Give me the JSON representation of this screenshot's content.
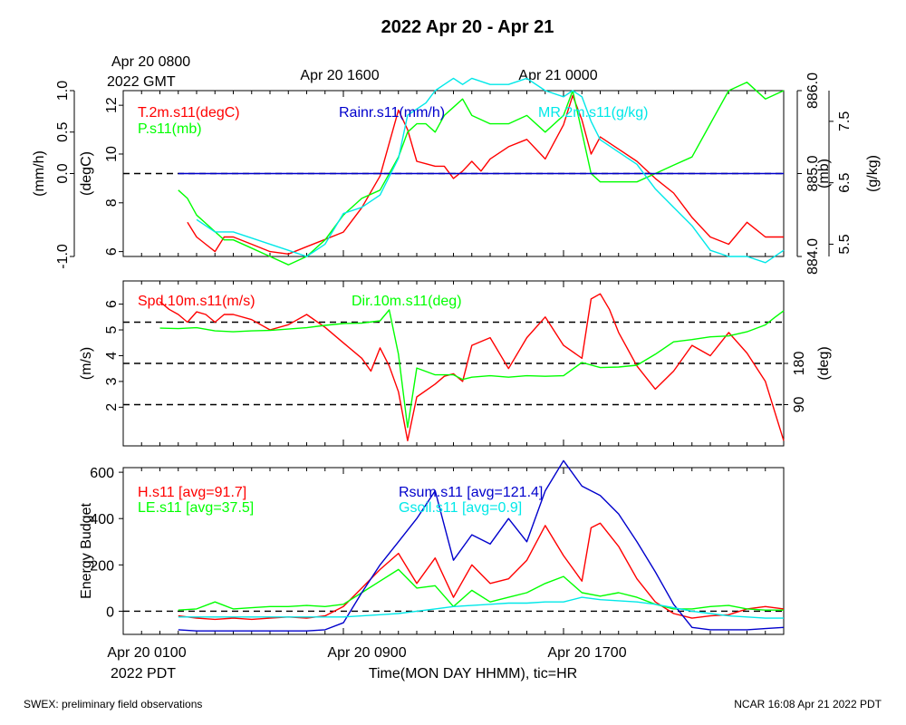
{
  "figure": {
    "title": "2022 Apr 20 - Apr 21",
    "gmt_label_1": "Apr 20 0800",
    "gmt_label_2": "2022 GMT",
    "gmt_top_ticks": [
      "Apr 20 1600",
      "Apr 21 0000"
    ],
    "pdt_bottom_ticks": [
      "Apr 20 0100",
      "Apr 20 0900",
      "Apr 20 1700"
    ],
    "pdt_label": "2022 PDT",
    "x_axis_label": "Time(MON DAY HHMM), tic=HR",
    "footer_left": "SWEX: preliminary field observations",
    "footer_right": "NCAR 16:08 Apr 21 2022 PDT",
    "colors": {
      "red": "#ff0000",
      "green": "#00ff00",
      "blue": "#0000cc",
      "cyan": "#00e8e8",
      "axis": "#000000"
    }
  },
  "chart_data": [
    {
      "type": "line",
      "panel": "top",
      "x_range_hours": [
        0,
        36
      ],
      "axes": [
        {
          "label": "(mm/h)",
          "ticks": [
            "-1.0",
            "0.0",
            "0.5",
            "1.0"
          ],
          "range": [
            -1.0,
            1.0
          ]
        },
        {
          "label": "(degC)",
          "ticks": [
            "6",
            "8",
            "10",
            "12"
          ],
          "range": [
            5.8,
            12.6
          ]
        },
        {
          "label": "(mb)",
          "ticks": [
            "884.0",
            "885.0",
            "886.0"
          ],
          "range": [
            884.0,
            886.0
          ]
        },
        {
          "label": "(g/kg)",
          "ticks": [
            "5.5",
            "6.5",
            "7.5"
          ],
          "range": [
            5.3,
            8.0
          ]
        }
      ],
      "series": [
        {
          "name": "T.2m.s11(degC)",
          "color": "#ff0000",
          "axis": 1,
          "x": [
            3.5,
            4,
            4.5,
            5,
            5.5,
            6,
            7,
            8,
            9,
            10,
            11,
            12,
            13,
            14,
            15,
            15.5,
            16,
            16.5,
            17,
            17.5,
            18,
            18.5,
            19,
            19.5,
            20,
            21,
            22,
            23,
            24,
            24.5,
            25,
            25.5,
            26,
            27,
            28,
            29,
            30,
            31,
            32,
            33,
            34,
            35,
            36
          ],
          "y": [
            7.2,
            6.6,
            6.3,
            6.0,
            6.6,
            6.6,
            6.3,
            6.0,
            5.9,
            6.2,
            6.5,
            6.8,
            7.8,
            9.1,
            11.8,
            11.0,
            9.7,
            9.6,
            9.5,
            9.5,
            9.0,
            9.3,
            9.7,
            9.3,
            9.8,
            10.3,
            10.6,
            9.8,
            11.2,
            12.4,
            11.4,
            10.0,
            10.7,
            10.2,
            9.7,
            9.0,
            8.4,
            7.4,
            6.6,
            6.3,
            7.2,
            6.6,
            6.6
          ]
        },
        {
          "name": "P.s11(mb)",
          "color": "#00ff00",
          "axis": 2,
          "x": [
            3,
            3.5,
            4,
            4.5,
            5,
            5.5,
            6,
            7,
            8,
            9,
            10,
            11,
            12,
            13,
            14,
            15,
            15.5,
            16,
            16.5,
            17,
            17.5,
            18,
            18.5,
            19,
            20,
            21,
            22,
            23,
            24,
            24.5,
            25,
            25.5,
            26,
            27,
            28,
            29,
            30,
            31,
            32,
            33,
            34,
            35,
            36
          ],
          "y": [
            884.8,
            884.7,
            884.5,
            884.4,
            884.3,
            884.2,
            884.2,
            884.1,
            884.0,
            883.9,
            884.0,
            884.2,
            884.5,
            884.7,
            884.8,
            885.2,
            885.5,
            885.6,
            885.6,
            885.5,
            885.7,
            885.8,
            885.9,
            885.7,
            885.6,
            885.6,
            885.7,
            885.5,
            885.7,
            886.0,
            885.5,
            885.0,
            884.9,
            884.9,
            884.9,
            885.0,
            885.1,
            885.2,
            885.6,
            886.0,
            886.1,
            885.9,
            886.0
          ]
        },
        {
          "name": "Rainr.s11(mm/h)",
          "color": "#0000cc",
          "axis": 0,
          "x": [
            3,
            36
          ],
          "y": [
            0.0,
            0.0
          ]
        },
        {
          "name": "MR.2m.s11(g/kg)",
          "color": "#00e8e8",
          "axis": 3,
          "x": [
            4,
            5,
            6,
            7,
            8,
            9,
            10,
            11,
            12,
            13,
            14,
            15,
            15.5,
            16,
            16.5,
            17,
            17.5,
            18,
            18.5,
            19,
            20,
            21,
            22,
            23,
            24,
            24.5,
            25,
            25.5,
            26,
            27,
            28,
            29,
            30,
            31,
            32,
            33,
            34,
            35,
            36
          ],
          "y": [
            5.9,
            5.7,
            5.7,
            5.6,
            5.5,
            5.4,
            5.3,
            5.5,
            6.0,
            6.1,
            6.3,
            6.9,
            7.6,
            7.7,
            7.8,
            8.0,
            8.1,
            8.2,
            8.1,
            8.2,
            8.1,
            8.1,
            8.2,
            8.0,
            7.9,
            8.0,
            7.9,
            7.5,
            7.2,
            7.0,
            6.8,
            6.4,
            6.1,
            5.8,
            5.4,
            5.3,
            5.3,
            5.2,
            5.4
          ]
        }
      ]
    },
    {
      "type": "line",
      "panel": "middle",
      "x_range_hours": [
        0,
        36
      ],
      "axes": [
        {
          "label": "(m/s)",
          "ticks": [
            "2",
            "3",
            "4",
            "5",
            "6"
          ],
          "range": [
            0.5,
            6.9
          ]
        },
        {
          "label": "(deg)",
          "ticks": [
            "90",
            "180"
          ],
          "range": [
            0,
            360
          ]
        }
      ],
      "series": [
        {
          "name": "Spd.10m.s11(m/s)",
          "color": "#ff0000",
          "axis": 0,
          "x": [
            2,
            2.5,
            3,
            3.5,
            4,
            4.5,
            5,
            5.5,
            6,
            7,
            8,
            9,
            10,
            11,
            12,
            13,
            13.5,
            14,
            14.5,
            15,
            15.5,
            16,
            17,
            17.5,
            18,
            18.5,
            19,
            20,
            21,
            22,
            23,
            24,
            25,
            25.5,
            26,
            26.5,
            27,
            28,
            29,
            30,
            31,
            32,
            33,
            34,
            35,
            36
          ],
          "y": [
            6.1,
            5.8,
            5.6,
            5.3,
            5.7,
            5.6,
            5.3,
            5.6,
            5.6,
            5.4,
            5.0,
            5.2,
            5.6,
            5.1,
            4.5,
            3.9,
            3.4,
            4.3,
            3.6,
            2.6,
            0.7,
            2.4,
            2.9,
            3.2,
            3.3,
            3.0,
            4.4,
            4.7,
            3.5,
            4.7,
            5.5,
            4.4,
            3.9,
            6.2,
            6.4,
            5.8,
            4.9,
            3.6,
            2.7,
            3.4,
            4.4,
            4.0,
            4.9,
            4.1,
            3.0,
            0.7
          ]
        },
        {
          "name": "Dir.10m.s11(deg)",
          "color": "#00ff00",
          "axis": 1,
          "x": [
            2,
            3,
            4,
            5,
            6,
            7,
            8,
            9,
            10,
            11,
            12,
            13,
            14,
            14.5,
            15,
            15.5,
            16,
            17,
            18,
            18.5,
            19,
            20,
            21,
            22,
            23,
            24,
            25,
            26,
            27,
            28,
            29,
            30,
            31,
            32,
            33,
            34,
            35,
            35.5,
            36
          ],
          "y": [
            257,
            256,
            258,
            251,
            249,
            251,
            252,
            255,
            258,
            263,
            267,
            268,
            273,
            297,
            200,
            40,
            170,
            155,
            155,
            145,
            150,
            153,
            150,
            153,
            152,
            153,
            182,
            171,
            172,
            176,
            200,
            227,
            232,
            238,
            240,
            249,
            264,
            280,
            295
          ]
        }
      ]
    },
    {
      "type": "line",
      "panel": "bottom",
      "ylabel": "Energy Budget",
      "x_range_hours": [
        0,
        36
      ],
      "ylim": [
        -100,
        620
      ],
      "series": [
        {
          "name": "H.s11 [avg=91.7]",
          "color": "#ff0000",
          "x": [
            3,
            4,
            5,
            6,
            7,
            8,
            9,
            10,
            11,
            12,
            13,
            14,
            15,
            16,
            17,
            18,
            19,
            20,
            21,
            22,
            23,
            24,
            25,
            25.5,
            26,
            27,
            28,
            29,
            30,
            31,
            32,
            33,
            34,
            35,
            36
          ],
          "y": [
            -20,
            -30,
            -35,
            -30,
            -35,
            -30,
            -25,
            -30,
            -20,
            20,
            100,
            180,
            250,
            120,
            230,
            60,
            200,
            120,
            140,
            220,
            370,
            240,
            130,
            360,
            380,
            280,
            140,
            40,
            -10,
            -30,
            -20,
            -15,
            10,
            20,
            10
          ]
        },
        {
          "name": "LE.s11 [avg=37.5]",
          "color": "#00ff00",
          "x": [
            3,
            4,
            5,
            6,
            7,
            8,
            9,
            10,
            11,
            12,
            13,
            14,
            15,
            16,
            17,
            18,
            19,
            20,
            21,
            22,
            23,
            24,
            25,
            26,
            27,
            28,
            29,
            30,
            31,
            32,
            33,
            34,
            35,
            36
          ],
          "y": [
            5,
            10,
            40,
            10,
            15,
            20,
            20,
            25,
            20,
            30,
            80,
            130,
            180,
            100,
            110,
            20,
            90,
            40,
            60,
            80,
            120,
            150,
            80,
            65,
            80,
            60,
            30,
            10,
            10,
            20,
            25,
            10,
            5,
            5
          ]
        },
        {
          "name": "Rsum.s11 [avg=121.4]",
          "color": "#0000cc",
          "x": [
            3,
            4,
            5,
            6,
            7,
            8,
            9,
            10,
            11,
            12,
            13,
            14,
            15,
            16,
            17,
            18,
            19,
            20,
            21,
            22,
            23,
            24,
            25,
            26,
            27,
            28,
            29,
            30,
            31,
            32,
            33,
            34,
            35,
            36
          ],
          "y": [
            -80,
            -85,
            -85,
            -85,
            -85,
            -85,
            -85,
            -85,
            -80,
            -50,
            80,
            200,
            300,
            400,
            520,
            220,
            330,
            290,
            400,
            300,
            520,
            650,
            540,
            500,
            420,
            300,
            170,
            30,
            -70,
            -80,
            -80,
            -80,
            -75,
            -70
          ]
        },
        {
          "name": "Gsoil.s11 [avg=0.9]",
          "color": "#00e8e8",
          "x": [
            3,
            4,
            5,
            6,
            7,
            8,
            9,
            10,
            11,
            12,
            13,
            14,
            15,
            16,
            17,
            18,
            19,
            20,
            21,
            22,
            23,
            24,
            25,
            26,
            27,
            28,
            29,
            30,
            31,
            32,
            33,
            34,
            35,
            36
          ],
          "y": [
            -25,
            -25,
            -25,
            -25,
            -25,
            -25,
            -25,
            -25,
            -25,
            -25,
            -20,
            -15,
            -10,
            0,
            10,
            20,
            25,
            30,
            35,
            35,
            40,
            40,
            60,
            50,
            45,
            40,
            30,
            15,
            0,
            -10,
            -20,
            -25,
            -30,
            -30
          ]
        }
      ]
    }
  ]
}
